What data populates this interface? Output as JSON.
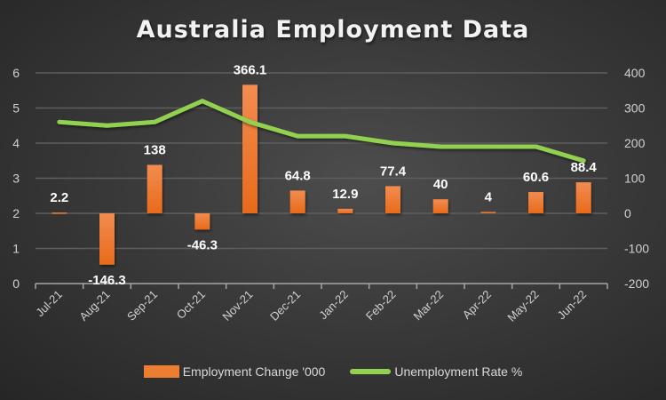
{
  "chart_data": {
    "type": "bar+line",
    "title": "Australia Employment Data",
    "categories": [
      "Jul-21",
      "Aug-21",
      "Sep-21",
      "Oct-21",
      "Nov-21",
      "Dec-21",
      "Jan-22",
      "Feb-22",
      "Mar-22",
      "Apr-22",
      "May-22",
      "Jun-22"
    ],
    "series": [
      {
        "name": "Employment Change '000",
        "type": "bar",
        "axis": "right",
        "color": "#ed7d31",
        "values": [
          2.2,
          -146.3,
          138,
          -46.3,
          366.1,
          64.8,
          12.9,
          77.4,
          40,
          4,
          60.6,
          88.4
        ],
        "data_labels": [
          "2.2",
          "-146.3",
          "138",
          "-46.3",
          "366.1",
          "64.8",
          "12.9",
          "77.4",
          "40",
          "4",
          "60.6",
          "88.4"
        ]
      },
      {
        "name": "Unemployment Rate %",
        "type": "line",
        "axis": "left",
        "color": "#92d050",
        "values": [
          4.6,
          4.5,
          4.6,
          5.2,
          4.6,
          4.2,
          4.2,
          4.0,
          3.9,
          3.9,
          3.9,
          3.5
        ]
      }
    ],
    "left_axis": {
      "ticks": [
        "0",
        "1",
        "2",
        "3",
        "4",
        "5",
        "6"
      ],
      "ylim": [
        0,
        6
      ]
    },
    "right_axis": {
      "ticks": [
        "-200",
        "-100",
        "0",
        "100",
        "200",
        "300",
        "400"
      ],
      "ylim": [
        -200,
        400
      ]
    },
    "grid": true,
    "legend_position": "bottom"
  },
  "legend": {
    "bar_label": "Employment Change '000",
    "line_label": "Unemployment Rate %"
  }
}
